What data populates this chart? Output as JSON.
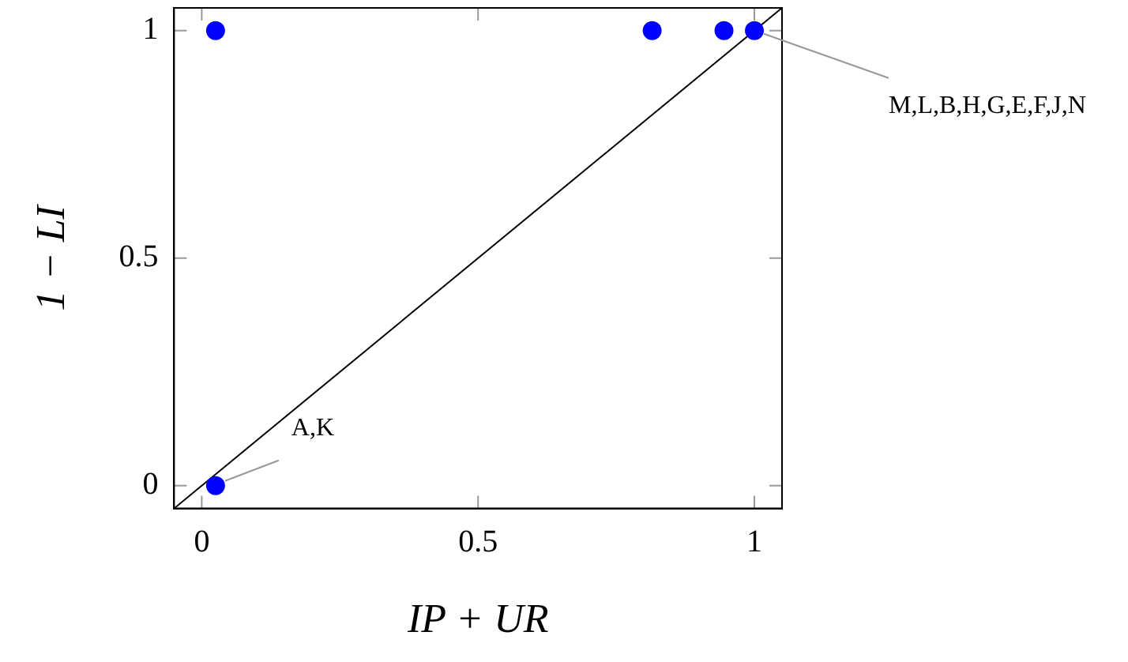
{
  "chart_data": {
    "type": "scatter",
    "xlabel": "IP + UR",
    "ylabel": "1 − LI",
    "marker": "circle",
    "series": [
      {
        "color": "#0000ff",
        "x": [
          0.025,
          0.025,
          0.815,
          0.945,
          1
        ],
        "values": [
          1,
          0,
          1,
          1,
          1
        ]
      },
      {
        "type": "line",
        "color": "#000000",
        "x": [
          -0.05,
          1.05
        ],
        "values": [
          -0.05,
          1.05
        ],
        "marker": "none",
        "line_style": "solid"
      }
    ],
    "xlim": [
      -0.05,
      1.05
    ],
    "ylim": [
      -0.05,
      1.05
    ],
    "xticks": [
      0,
      0.5,
      1
    ],
    "yticks": [
      0,
      0.5,
      1
    ],
    "grid": false,
    "legend": false,
    "annotations": [
      {
        "text": "A,K",
        "x": 0.025,
        "y": 0
      },
      {
        "text": "M,L,B,H,G,E,F,J,N",
        "x": 1,
        "y": 1
      }
    ]
  }
}
